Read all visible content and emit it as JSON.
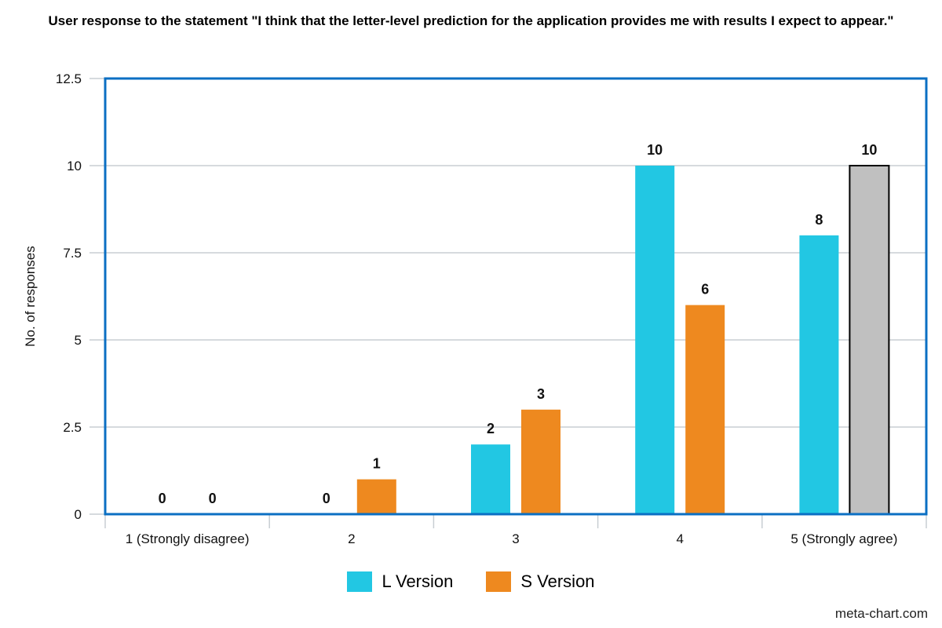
{
  "chart_data": {
    "type": "bar",
    "title": "User response to the statement \"I think that the letter-level prediction for the application provides me with results I expect to appear.\"",
    "xlabel": "",
    "ylabel": "No. of responses",
    "categories": [
      "1 (Strongly disagree)",
      "2",
      "3",
      "4",
      "5 (Strongly agree)"
    ],
    "series": [
      {
        "name": "L Version",
        "values": [
          0,
          0,
          2,
          10,
          8
        ],
        "color": "#22c7e3"
      },
      {
        "name": "S Version",
        "values": [
          0,
          1,
          3,
          6,
          10
        ],
        "color": "#ee891f"
      }
    ],
    "highlight": {
      "series": 1,
      "index": 4,
      "color": "#c0c0c0",
      "stroke": "#000000"
    },
    "ylim": [
      0,
      12.5
    ],
    "yticks": [
      0,
      2.5,
      5,
      7.5,
      10,
      12.5
    ],
    "ytick_labels": [
      "0",
      "2.5",
      "5",
      "7.5",
      "10",
      "12.5"
    ],
    "data_labels": true,
    "grid": true,
    "legend_position": "bottom",
    "frame_color": "#0b6fc3",
    "grid_color": "#c8ced3"
  },
  "credit": "meta-chart.com"
}
